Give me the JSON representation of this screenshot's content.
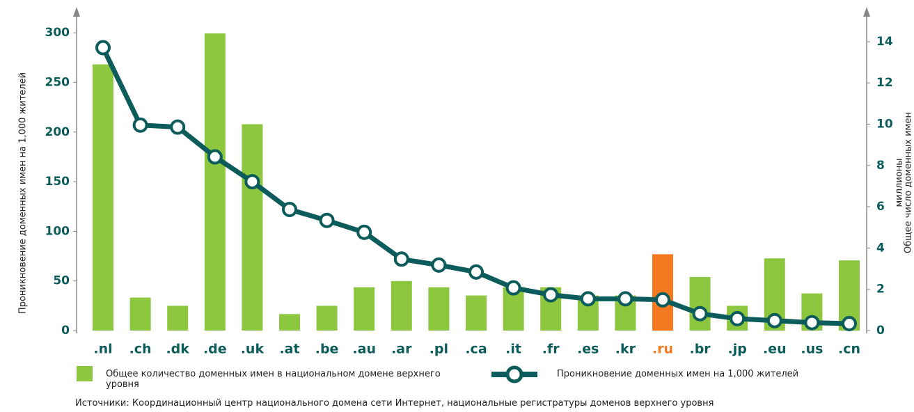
{
  "chart_data": {
    "type": "bar_line",
    "ylabel": "Проникновение доменных имен на 1,000 жителей",
    "y2label": [
      "Общее число доменных имен",
      "миллионы"
    ],
    "source": "Источники: Координационный центр национального домена сети Интернет, национальные регистратуры доменов верхнего уровня",
    "categories": [
      ".nl",
      ".ch",
      ".dk",
      ".de",
      ".uk",
      ".at",
      ".be",
      ".au",
      ".ar",
      ".pl",
      ".ca",
      ".it",
      ".fr",
      ".es",
      ".kr",
      ".ru",
      ".br",
      ".jp",
      ".eu",
      ".us",
      ".cn"
    ],
    "series": [
      {
        "name": "Общее количество доменных имен в национальном домене верхнего уровня",
        "type": "bar",
        "axis": "y2",
        "color": "#8dc63f",
        "colors": [
          "#8dc63f",
          "#8dc63f",
          "#8dc63f",
          "#8dc63f",
          "#8dc63f",
          "#8dc63f",
          "#8dc63f",
          "#8dc63f",
          "#8dc63f",
          "#8dc63f",
          "#8dc63f",
          "#8dc63f",
          "#8dc63f",
          "#8dc63f",
          "#8dc63f",
          "#f47920",
          "#8dc63f",
          "#8dc63f",
          "#8dc63f",
          "#8dc63f",
          "#8dc63f"
        ],
        "values": [
          12.9,
          1.6,
          1.2,
          14.4,
          10,
          0.8,
          1.2,
          2.1,
          2.4,
          2.1,
          1.7,
          2.1,
          2.1,
          1.7,
          1.7,
          3.7,
          2.6,
          1.2,
          3.5,
          1.8,
          3.4
        ]
      },
      {
        "name": "Проникновение доменных имен на 1,000 жителей",
        "type": "line",
        "axis": "y",
        "color": "#0b5c5a",
        "values": [
          285,
          207,
          205,
          175,
          150,
          122,
          111,
          99,
          72,
          66,
          59,
          43,
          36,
          32,
          32,
          31,
          17,
          12,
          10,
          8,
          7
        ]
      }
    ],
    "ylim": [
      0,
      305
    ],
    "yticks": [
      0,
      50,
      100,
      150,
      200,
      250,
      300
    ],
    "y2lim": [
      0,
      14.67
    ],
    "y2ticks": [
      0,
      2,
      4,
      6,
      8,
      10,
      12,
      14
    ],
    "label_color": "#0b5c5a"
  }
}
